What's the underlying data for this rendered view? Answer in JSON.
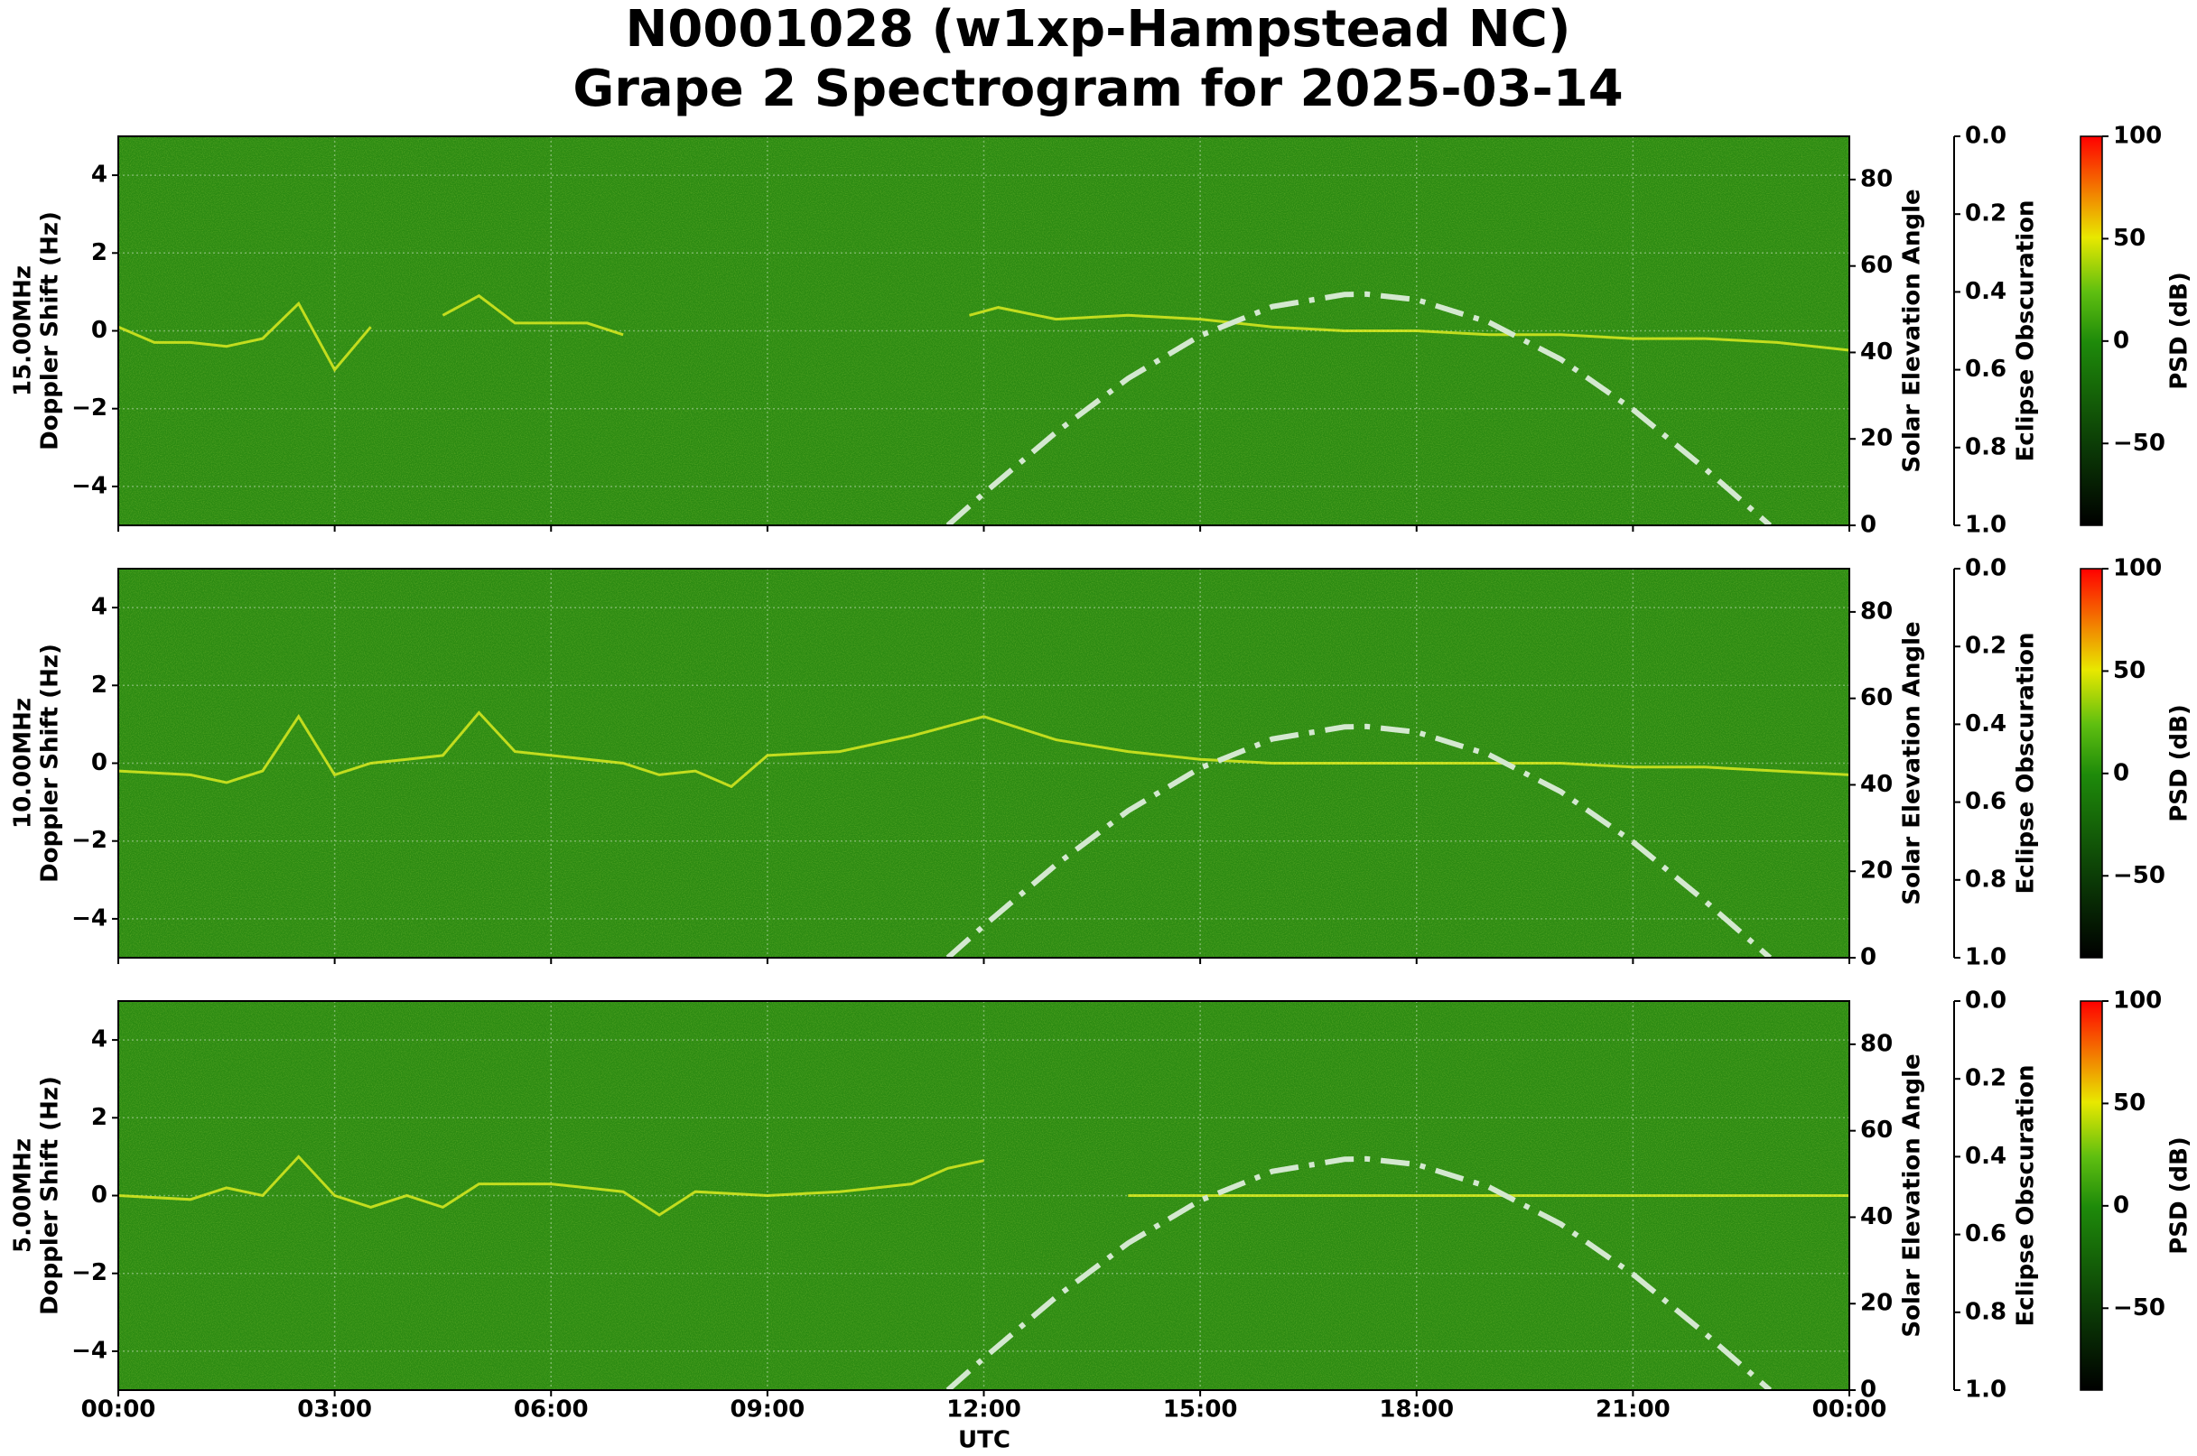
{
  "title": [
    "N0001028 (w1xp-Hampstead NC)",
    "Grape 2 Spectrogram for 2025-03-14"
  ],
  "x_axis": {
    "label": "UTC",
    "lim": [
      0,
      24
    ],
    "ticks": [
      {
        "value": 0,
        "label": "00:00"
      },
      {
        "value": 3,
        "label": "03:00"
      },
      {
        "value": 6,
        "label": "06:00"
      },
      {
        "value": 9,
        "label": "09:00"
      },
      {
        "value": 12,
        "label": "12:00"
      },
      {
        "value": 15,
        "label": "15:00"
      },
      {
        "value": 18,
        "label": "18:00"
      },
      {
        "value": 21,
        "label": "21:00"
      },
      {
        "value": 24,
        "label": "00:00"
      }
    ]
  },
  "chart_data": [
    {
      "type": "spectrogram",
      "ylabel": [
        "15.00MHz",
        "Doppler Shift (Hz)"
      ],
      "ylim": [
        -5,
        5
      ],
      "yticks": [
        {
          "value": -4,
          "label": "−4"
        },
        {
          "value": -2,
          "label": "−2"
        },
        0,
        2,
        4
      ],
      "grid": true,
      "y2label": "Solar Elevation Angle",
      "y2lim": [
        0,
        90
      ],
      "y2ticks": [
        0,
        20,
        40,
        60,
        80
      ],
      "obscuration_axis": {
        "label": "Eclipse Obscuration",
        "lim": [
          1,
          0
        ],
        "ticks": [
          {
            "value": 0,
            "label": "0.0"
          },
          0.2,
          0.4,
          0.6,
          0.8,
          {
            "value": 1,
            "label": "1.0"
          }
        ]
      },
      "colorbar": {
        "label": "PSD (dB)",
        "lim": [
          -90,
          100
        ],
        "ticks": [
          {
            "value": -50,
            "label": "−50"
          },
          0,
          50,
          100
        ]
      },
      "series": [
        {
          "color": "#e6f020",
          "x": [
            0,
            0.5,
            1,
            1.5,
            2,
            2.5,
            3,
            3.5,
            4,
            4.5,
            5,
            5.5,
            6,
            6.5,
            7,
            9,
            11.8,
            12.2,
            13,
            14,
            15,
            16,
            17,
            18,
            19,
            20,
            21,
            22,
            23,
            24
          ],
          "values": [
            0.1,
            -0.3,
            -0.3,
            -0.4,
            -0.2,
            0.7,
            -1,
            0.1,
            null,
            0.4,
            0.9,
            0.2,
            0.2,
            0.2,
            -0.1,
            null,
            0.4,
            0.6,
            0.3,
            0.4,
            0.3,
            0.1,
            0,
            0,
            -0.1,
            -0.1,
            -0.2,
            -0.2,
            -0.3,
            -0.5
          ]
        },
        {
          "color": "#d4e8d0",
          "axis": "y2",
          "x": [
            11.5,
            12,
            13,
            14,
            15,
            16,
            17,
            17.3,
            18,
            19,
            20,
            21,
            22,
            22.9
          ],
          "values": [
            0,
            7.4,
            21.5,
            34,
            43.9,
            50.6,
            53.4,
            53.5,
            52.2,
            47,
            38.4,
            26.8,
            13.1,
            0
          ]
        }
      ]
    },
    {
      "type": "spectrogram",
      "ylabel": [
        "10.00MHz",
        "Doppler Shift (Hz)"
      ],
      "ylim": [
        -5,
        5
      ],
      "yticks": [
        {
          "value": -4,
          "label": "−4"
        },
        {
          "value": -2,
          "label": "−2"
        },
        0,
        2,
        4
      ],
      "grid": true,
      "y2label": "Solar Elevation Angle",
      "y2lim": [
        0,
        90
      ],
      "y2ticks": [
        0,
        20,
        40,
        60,
        80
      ],
      "obscuration_axis": {
        "label": "Eclipse Obscuration",
        "lim": [
          1,
          0
        ],
        "ticks": [
          {
            "value": 0,
            "label": "0.0"
          },
          0.2,
          0.4,
          0.6,
          0.8,
          {
            "value": 1,
            "label": "1.0"
          }
        ]
      },
      "colorbar": {
        "label": "PSD (dB)",
        "lim": [
          -90,
          100
        ],
        "ticks": [
          {
            "value": -50,
            "label": "−50"
          },
          0,
          50,
          100
        ]
      },
      "series": [
        {
          "color": "#e6f020",
          "x": [
            0,
            1,
            1.5,
            2,
            2.5,
            3,
            3.5,
            4,
            4.5,
            5,
            5.5,
            6,
            7,
            7.5,
            8,
            8.5,
            9,
            10,
            11,
            12,
            13,
            14,
            15,
            16,
            17,
            18,
            19,
            20,
            21,
            22,
            23,
            24
          ],
          "values": [
            -0.2,
            -0.3,
            -0.5,
            -0.2,
            1.2,
            -0.3,
            0,
            0.1,
            0.2,
            1.3,
            0.3,
            0.2,
            0,
            -0.3,
            -0.2,
            -0.6,
            0.2,
            0.3,
            0.7,
            1.2,
            0.6,
            0.3,
            0.1,
            0,
            0,
            0,
            0,
            0,
            -0.1,
            -0.1,
            -0.2,
            -0.3
          ]
        },
        {
          "color": "#d4e8d0",
          "axis": "y2",
          "x": [
            11.5,
            12,
            13,
            14,
            15,
            16,
            17,
            17.3,
            18,
            19,
            20,
            21,
            22,
            22.9
          ],
          "values": [
            0,
            7.4,
            21.5,
            34,
            43.9,
            50.6,
            53.4,
            53.5,
            52.2,
            47,
            38.4,
            26.8,
            13.1,
            0
          ]
        }
      ]
    },
    {
      "type": "spectrogram",
      "ylabel": [
        "5.00MHz",
        "Doppler Shift (Hz)"
      ],
      "ylim": [
        -5,
        5
      ],
      "yticks": [
        {
          "value": -4,
          "label": "−4"
        },
        {
          "value": -2,
          "label": "−2"
        },
        0,
        2,
        4
      ],
      "grid": true,
      "y2label": "Solar Elevation Angle",
      "y2lim": [
        0,
        90
      ],
      "y2ticks": [
        0,
        20,
        40,
        60,
        80
      ],
      "obscuration_axis": {
        "label": "Eclipse Obscuration",
        "lim": [
          1,
          0
        ],
        "ticks": [
          {
            "value": 0,
            "label": "0.0"
          },
          0.2,
          0.4,
          0.6,
          0.8,
          {
            "value": 1,
            "label": "1.0"
          }
        ]
      },
      "colorbar": {
        "label": "PSD (dB)",
        "lim": [
          -90,
          100
        ],
        "ticks": [
          {
            "value": -50,
            "label": "−50"
          },
          0,
          50,
          100
        ]
      },
      "series": [
        {
          "color": "#e6f020",
          "x": [
            0,
            1,
            1.5,
            2,
            2.5,
            3,
            3.5,
            4,
            4.5,
            5,
            6,
            7,
            7.5,
            8,
            9,
            10,
            11,
            11.5,
            12,
            13,
            14,
            16,
            18,
            20,
            22,
            24
          ],
          "values": [
            0,
            -0.1,
            0.2,
            0,
            1,
            0,
            -0.3,
            0,
            -0.3,
            0.3,
            0.3,
            0.1,
            -0.5,
            0.1,
            0,
            0.1,
            0.3,
            0.7,
            0.9,
            null,
            0,
            0,
            0,
            0,
            0,
            0
          ]
        },
        {
          "color": "#d4e8d0",
          "axis": "y2",
          "x": [
            11.5,
            12,
            13,
            14,
            15,
            16,
            17,
            17.3,
            18,
            19,
            20,
            21,
            22,
            22.9
          ],
          "values": [
            0,
            7.4,
            21.5,
            34,
            43.9,
            50.6,
            53.4,
            53.5,
            52.2,
            47,
            38.4,
            26.8,
            13.1,
            0
          ]
        }
      ]
    }
  ]
}
